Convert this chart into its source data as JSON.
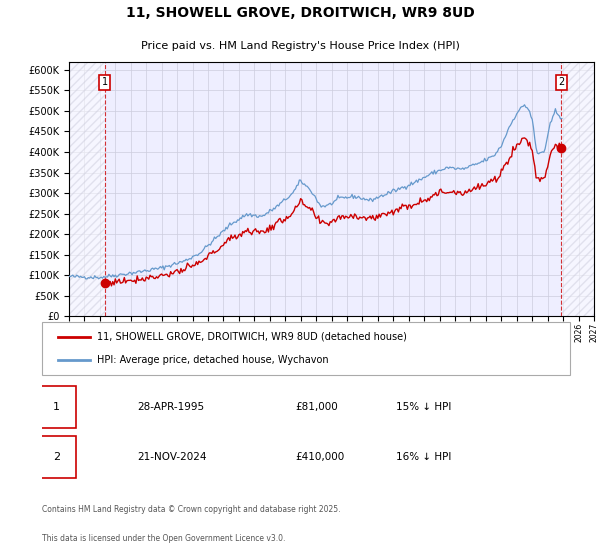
{
  "title": "11, SHOWELL GROVE, DROITWICH, WR9 8UD",
  "subtitle": "Price paid vs. HM Land Registry's House Price Index (HPI)",
  "legend_line1": "11, SHOWELL GROVE, DROITWICH, WR9 8UD (detached house)",
  "legend_line2": "HPI: Average price, detached house, Wychavon",
  "footer1": "Contains HM Land Registry data © Crown copyright and database right 2025.",
  "footer2": "This data is licensed under the Open Government Licence v3.0.",
  "sale1_date": "28-APR-1995",
  "sale1_price": "£81,000",
  "sale1_hpi": "15% ↓ HPI",
  "sale2_date": "21-NOV-2024",
  "sale2_price": "£410,000",
  "sale2_hpi": "16% ↓ HPI",
  "sale_color": "#cc0000",
  "hpi_color": "#6699cc",
  "bg_color": "#eeeeff",
  "grid_color": "#ccccdd",
  "hatch_color": "#ccccdd",
  "ylim": [
    0,
    620000
  ],
  "xlim_start": 1993.0,
  "xlim_end": 2027.0,
  "sale1_x": 1995.32,
  "sale1_y": 81000,
  "sale2_x": 2024.89,
  "sale2_y": 410000
}
